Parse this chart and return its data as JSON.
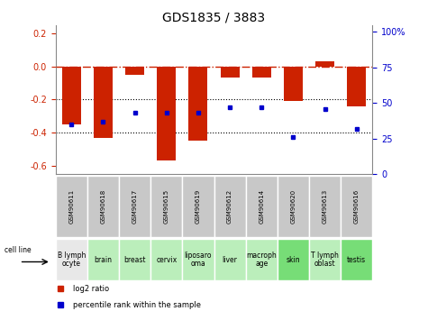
{
  "title": "GDS1835 / 3883",
  "samples": [
    "GSM90611",
    "GSM90618",
    "GSM90617",
    "GSM90615",
    "GSM90619",
    "GSM90612",
    "GSM90614",
    "GSM90620",
    "GSM90613",
    "GSM90616"
  ],
  "cell_lines": [
    "B lymph\nocyte",
    "brain",
    "breast",
    "cervix",
    "liposaro\noma",
    "liver",
    "macroph\nage",
    "skin",
    "T lymph\noblast",
    "testis"
  ],
  "cell_line_colors": [
    "#e8e8e8",
    "#bbeebb",
    "#bbeebb",
    "#bbeebb",
    "#bbeebb",
    "#bbeebb",
    "#bbeebb",
    "#77dd77",
    "#bbeebb",
    "#77dd77"
  ],
  "log2_ratio": [
    -0.35,
    -0.43,
    -0.05,
    -0.57,
    -0.45,
    -0.07,
    -0.07,
    -0.21,
    0.03,
    -0.24
  ],
  "percentile_rank": [
    35,
    37,
    43,
    43,
    43,
    47,
    47,
    26,
    46,
    32
  ],
  "ylim_left": [
    -0.65,
    0.25
  ],
  "ylim_right": [
    0,
    105
  ],
  "yticks_left": [
    0.2,
    0.0,
    -0.2,
    -0.4,
    -0.6
  ],
  "yticks_right": [
    0,
    25,
    50,
    75,
    100
  ],
  "bar_color": "#cc2200",
  "dot_color": "#0000cc",
  "ref_line_y": 0.0,
  "grid_lines": [
    -0.2,
    -0.4
  ],
  "bar_width": 0.6,
  "gsm_box_color": "#c8c8c8",
  "title_fontsize": 10,
  "tick_fontsize": 7,
  "gsm_fontsize": 5.0,
  "cell_fontsize": 5.5
}
